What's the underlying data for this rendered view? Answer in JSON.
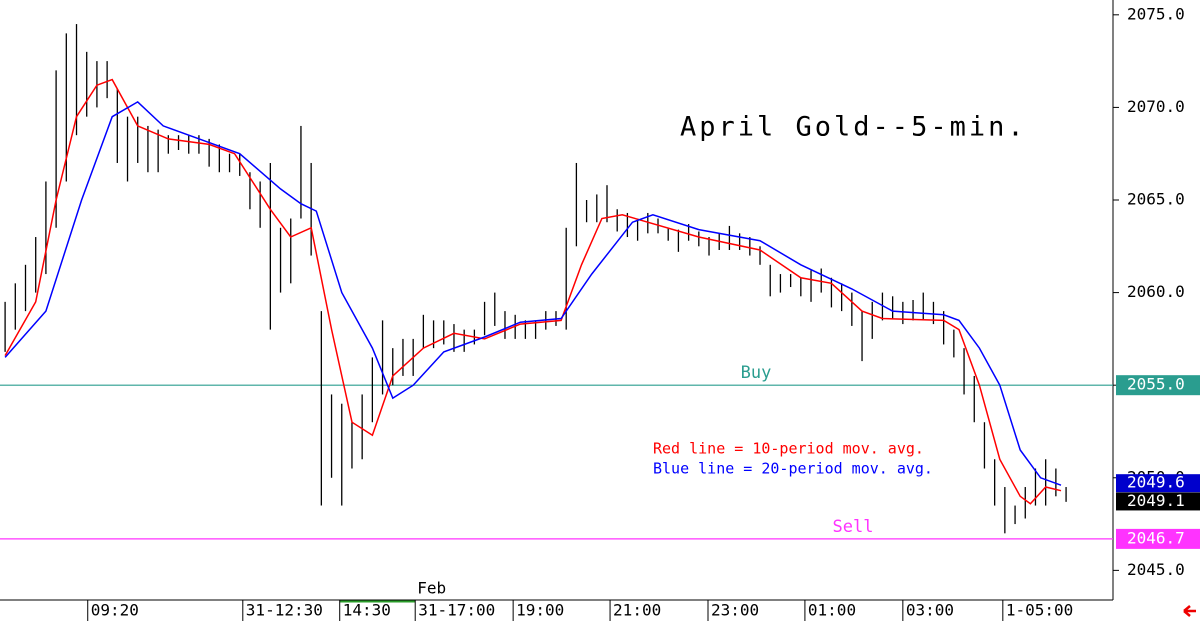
{
  "chart_data": {
    "type": "ohlc",
    "title": "April Gold--5-min.",
    "ylim": [
      2043.4,
      2075.8
    ],
    "yticks": [
      {
        "value": 2045,
        "label": "2045.0"
      },
      {
        "value": 2050,
        "label": "2050.0"
      },
      {
        "value": 2055,
        "label": "2055.0"
      },
      {
        "value": 2060,
        "label": "2060.0"
      },
      {
        "value": 2065,
        "label": "2065.0"
      },
      {
        "value": 2070,
        "label": "2070.0"
      },
      {
        "value": 2075,
        "label": "2075.0"
      }
    ],
    "xlim": [
      -0.5,
      108.6
    ],
    "xticks": [
      {
        "value": 8.1,
        "label": "09:20"
      },
      {
        "value": 23.3,
        "label": "31-12:30"
      },
      {
        "value": 32.8,
        "label": "14:30"
      },
      {
        "value": 40.2,
        "label": "31-17:00"
      },
      {
        "value": 49.8,
        "label": "19:00"
      },
      {
        "value": 59.3,
        "label": "21:00"
      },
      {
        "value": 68.9,
        "label": "23:00"
      },
      {
        "value": 78.4,
        "label": "01:00"
      },
      {
        "value": 88.0,
        "label": "03:00"
      },
      {
        "value": 97.8,
        "label": "1-05:00"
      }
    ],
    "x_annotation": {
      "text": "Feb",
      "x": 40.2
    },
    "bars": {
      "color": "#000000",
      "high": [
        2059.5,
        2060.5,
        2061.5,
        2063,
        2066,
        2072,
        2074,
        2074.5,
        2073,
        2072.5,
        2072.5,
        2071,
        2069.5,
        2069.5,
        2069,
        2068.8,
        2068.5,
        2068.5,
        2068.5,
        2068.5,
        2068.3,
        2068,
        2067.5,
        2067.5,
        2066.5,
        2066,
        2067,
        2063.5,
        2064,
        2069,
        2067,
        2059,
        2054.5,
        2054,
        2053,
        2054.5,
        2056.5,
        2058.5,
        2057,
        2057.5,
        2057.5,
        2058.8,
        2058.5,
        2058.5,
        2058.3,
        2058,
        2058,
        2059.5,
        2060,
        2059,
        2058.8,
        2058.5,
        2058.5,
        2059,
        2059,
        2063.5,
        2067,
        2065,
        2065.3,
        2065.8,
        2064.5,
        2064.3,
        2064,
        2064.3,
        2064,
        2063.5,
        2063.4,
        2063.7,
        2063.3,
        2063,
        2063.2,
        2063.6,
        2063.2,
        2063,
        2062.5,
        2061.5,
        2061,
        2061,
        2060.8,
        2061.2,
        2061.3,
        2060.8,
        2060.5,
        2060,
        2059,
        2059.5,
        2060,
        2059.8,
        2059.5,
        2059.6,
        2060,
        2059.5,
        2059,
        2058,
        2057,
        2055.5,
        2053,
        2051,
        2049.5,
        2048.5,
        2049.5,
        2050.5,
        2051,
        2050.5,
        2049.5
      ],
      "low": [
        2056.8,
        2058,
        2059,
        2060,
        2061,
        2063.5,
        2066,
        2068.5,
        2069.5,
        2070,
        2070.5,
        2067,
        2066,
        2067,
        2066.5,
        2066.5,
        2067.5,
        2067.7,
        2067.5,
        2067.5,
        2066.8,
        2066.5,
        2066.5,
        2066.3,
        2064.5,
        2063.5,
        2058,
        2060,
        2060.5,
        2064,
        2062,
        2048.5,
        2050,
        2048.5,
        2050.5,
        2051,
        2053,
        2054.5,
        2055,
        2055.5,
        2055.5,
        2057,
        2057,
        2057.2,
        2056.8,
        2056.8,
        2057.2,
        2057.7,
        2058.2,
        2057.5,
        2057.5,
        2057.5,
        2057.5,
        2058,
        2058.2,
        2058,
        2062.5,
        2063.8,
        2063.8,
        2063.8,
        2063.3,
        2063,
        2062.8,
        2063.2,
        2063.2,
        2062.8,
        2062.2,
        2062.8,
        2062.5,
        2062,
        2062.3,
        2062.3,
        2062.3,
        2062,
        2061.5,
        2059.8,
        2060,
        2060.3,
        2059.8,
        2059.5,
        2060,
        2059.2,
        2059,
        2058.2,
        2056.3,
        2057.5,
        2058.5,
        2058.6,
        2058.3,
        2058.5,
        2058.5,
        2058.3,
        2057.2,
        2056.5,
        2054.5,
        2053,
        2050.5,
        2048.5,
        2047,
        2047.5,
        2047.8,
        2048.5,
        2048.5,
        2049,
        2048.7
      ]
    },
    "series": [
      {
        "name": "Red line = 10-period mov. avg.",
        "color": "#ff0000",
        "x": [
          0,
          3,
          5,
          7,
          9,
          10.5,
          12,
          13,
          16,
          20,
          22.5,
          26,
          28,
          30,
          32,
          34,
          36,
          38,
          41,
          44,
          47,
          50.5,
          54.5,
          56.5,
          58.5,
          60.5,
          68,
          74,
          78,
          81,
          84,
          86,
          92,
          93.5,
          95.5,
          97.5,
          99.5,
          100.5,
          102,
          103.5
        ],
        "values": [
          2056.6,
          2059.5,
          2065,
          2069.5,
          2071.2,
          2071.5,
          2070,
          2069,
          2068.3,
          2068,
          2067.5,
          2064.5,
          2063,
          2063.5,
          2058,
          2053,
          2052.3,
          2055.5,
          2057,
          2057.8,
          2057.5,
          2058.3,
          2058.5,
          2061.5,
          2064,
          2064.2,
          2063,
          2062.3,
          2060.8,
          2060.5,
          2059,
          2058.6,
          2058.5,
          2058,
          2055,
          2051,
          2049,
          2048.6,
          2049.5,
          2049.3
        ]
      },
      {
        "name": "Blue line = 20-period mov. avg.",
        "color": "#0000ff",
        "x": [
          0,
          4,
          7.5,
          10.5,
          13,
          15.5,
          19.5,
          23,
          27,
          29,
          30.5,
          33,
          36,
          38,
          40,
          43,
          47,
          50.5,
          54.5,
          57.5,
          61.5,
          63.5,
          68,
          74,
          78,
          83,
          87,
          92,
          93.5,
          95.5,
          97.5,
          99.5,
          101.5,
          103.5
        ],
        "values": [
          2056.5,
          2059,
          2065,
          2069.5,
          2070.3,
          2069,
          2068.2,
          2067.5,
          2065.6,
          2064.8,
          2064.4,
          2060,
          2057,
          2054.3,
          2055,
          2056.8,
          2057.6,
          2058.4,
          2058.6,
          2061,
          2063.8,
          2064.2,
          2063.4,
          2062.8,
          2061.5,
          2060.2,
          2059,
          2058.8,
          2058.5,
          2057,
          2055,
          2051.5,
          2050,
          2049.6
        ]
      }
    ],
    "levels": [
      {
        "name": "Buy",
        "value": 2055,
        "label": "2055.0",
        "color": "#2a9d8f"
      },
      {
        "name": "Sell",
        "value": 2046.7,
        "label": "2046.7",
        "color": "#ff33ff"
      }
    ],
    "last_values": [
      {
        "value": 2049.6,
        "label": "2049.6",
        "color": "#0000cc"
      },
      {
        "value": 2049.1,
        "label": "2049.1",
        "color": "#000000"
      }
    ]
  }
}
